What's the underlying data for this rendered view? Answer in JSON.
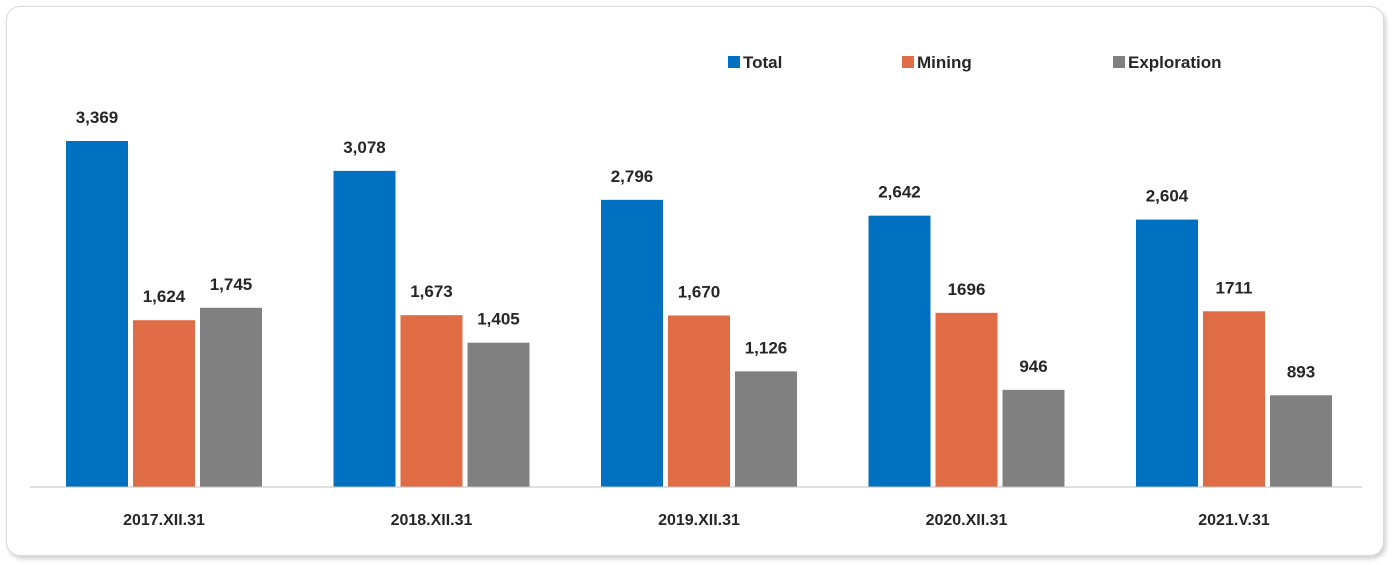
{
  "chart_data": {
    "type": "bar",
    "categories": [
      "2017.XII.31",
      "2018.XII.31",
      "2019.XII.31",
      "2020.XII.31",
      "2021.V.31"
    ],
    "series": [
      {
        "name": "Total",
        "color": "#0070C0",
        "values": [
          3369,
          3078,
          2796,
          2642,
          2604
        ],
        "labels": [
          "3,369",
          "3,078",
          "2,796",
          "2,642",
          "2,604"
        ]
      },
      {
        "name": "Mining",
        "color": "#E06C45",
        "values": [
          1624,
          1673,
          1670,
          1696,
          1711
        ],
        "labels": [
          "1,624",
          "1,673",
          "1,670",
          "1696",
          "1711"
        ]
      },
      {
        "name": "Exploration",
        "color": "#808080",
        "values": [
          1745,
          1405,
          1126,
          946,
          893
        ],
        "labels": [
          "1,745",
          "1,405",
          "1,126",
          "946",
          "893"
        ]
      }
    ],
    "legend_position": "top-right",
    "grid": false,
    "ylim": [
      0,
      3600
    ]
  }
}
